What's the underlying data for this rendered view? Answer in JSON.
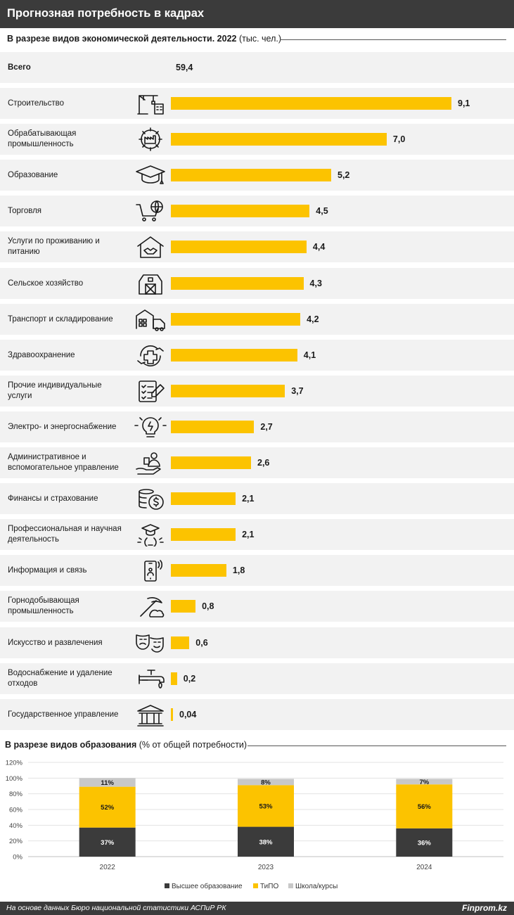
{
  "header": {
    "title": "Прогнозная потребность в кадрах"
  },
  "section1": {
    "title_bold": "В разрезе видов экономической деятельности. 2022",
    "title_unit": " (тыс. чел.)"
  },
  "total": {
    "label": "Всего",
    "value_label": "59,4"
  },
  "section2": {
    "title_bold": "В разрезе видов образования",
    "title_unit": " (% от общей потребности)"
  },
  "footer": {
    "note": "На основе данных Бюро национальной статистики АСПиР РК",
    "brand": "Finprom.kz"
  },
  "colors": {
    "bar": "#fcc300",
    "higher": "#3b3b3b",
    "tipo": "#fcc300",
    "school": "#c8c8c8",
    "row_bg": "#f2f2f2"
  },
  "chart_data": [
    {
      "type": "bar",
      "orientation": "horizontal",
      "categories": [
        "Строительство",
        "Обрабатывающая промышленность",
        "Образование",
        "Торговля",
        "Услуги по проживанию и питанию",
        "Сельское хозяйство",
        "Транспорт и складирование",
        "Здравоохранение",
        "Прочие индивидуальные услуги",
        "Электро- и энергоснабжение",
        "Административное и вспомогательное управление",
        "Финансы и страхование",
        "Профессиональная и научная деятельность",
        "Информация и связь",
        "Горнодобывающая промышленность",
        "Искусство и развлечения",
        "Водоснабжение и удаление отходов",
        "Государственное управление"
      ],
      "label_lines": [
        [
          "Строительство"
        ],
        [
          "Обрабатывающая",
          "промышленность"
        ],
        [
          "Образование"
        ],
        [
          "Торговля"
        ],
        [
          "Услуги по проживанию и",
          "питанию"
        ],
        [
          "Сельское хозяйство"
        ],
        [
          "Транспорт и складирование"
        ],
        [
          "Здравоохранение"
        ],
        [
          "Прочие индивидуальные",
          "услуги"
        ],
        [
          "Электро- и энергоснабжение"
        ],
        [
          "Административное и",
          "вспомогательное управление"
        ],
        [
          "Финансы и страхование"
        ],
        [
          "Профессиональная и научная",
          "деятельность"
        ],
        [
          "Информация и связь"
        ],
        [
          "Горнодобывающая",
          "промышленность"
        ],
        [
          "Искусство и развлечения"
        ],
        [
          "Водоснабжение и удаление",
          "отходов"
        ],
        [
          "Государственное управление"
        ]
      ],
      "icons": [
        "crane-building-icon",
        "factory-gear-icon",
        "graduation-cap-icon",
        "shopping-cart-globe-icon",
        "house-handshake-icon",
        "barn-icon",
        "warehouse-truck-icon",
        "medical-cross-hands-icon",
        "checklist-pen-icon",
        "light-bulb-icon",
        "person-hand-icon",
        "coins-dollar-icon",
        "graduate-bulb-icon",
        "smartphone-icon",
        "pickaxe-icon",
        "theater-masks-icon",
        "water-tap-icon",
        "government-building-icon"
      ],
      "values": [
        9.1,
        7.0,
        5.2,
        4.5,
        4.4,
        4.3,
        4.2,
        4.1,
        3.7,
        2.7,
        2.6,
        2.1,
        2.1,
        1.8,
        0.8,
        0.6,
        0.2,
        0.04
      ],
      "value_labels": [
        "9,1",
        "7,0",
        "5,2",
        "4,5",
        "4,4",
        "4,3",
        "4,2",
        "4,1",
        "3,7",
        "2,7",
        "2,6",
        "2,1",
        "2,1",
        "1,8",
        "0,8",
        "0,6",
        "0,2",
        "0,04"
      ]
    },
    {
      "type": "bar",
      "stacked": true,
      "categories": [
        "2022",
        "2023",
        "2024"
      ],
      "series": [
        {
          "name": "Высшее образование",
          "values": [
            37,
            38,
            36
          ],
          "labels": [
            "37%",
            "38%",
            "36%"
          ]
        },
        {
          "name": "ТиПО",
          "values": [
            52,
            53,
            56
          ],
          "labels": [
            "52%",
            "53%",
            "56%"
          ]
        },
        {
          "name": "Школа/курсы",
          "values": [
            11,
            8,
            7
          ],
          "labels": [
            "11%",
            "8%",
            "7%"
          ]
        }
      ],
      "ylim": [
        0,
        120
      ],
      "yticks": [
        "0%",
        "20%",
        "40%",
        "60%",
        "80%",
        "100%",
        "120%"
      ],
      "grid": true,
      "legend_position": "bottom"
    }
  ]
}
